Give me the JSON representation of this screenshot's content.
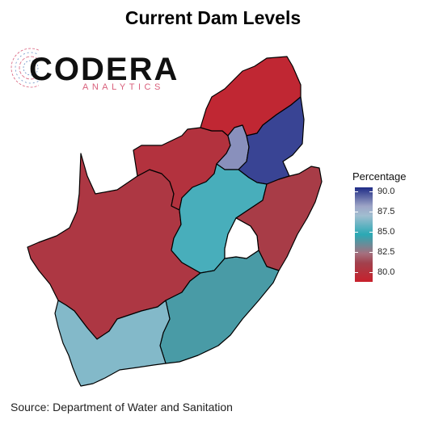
{
  "title": "Current Dam Levels",
  "logo": {
    "name": "CODERA",
    "subtitle": "ANALYTICS"
  },
  "legend": {
    "title": "Percentage",
    "ticks": [
      "90.0",
      "87.5",
      "85.0",
      "82.5",
      "80.0"
    ],
    "colors": {
      "low": "#c8202c",
      "mid": "#2aa9b4",
      "high": "#1e2b86"
    }
  },
  "source": "Source: Department of Water and Sanitation",
  "chart_data": {
    "type": "choropleth",
    "title": "Current Dam Levels",
    "legend_title": "Percentage",
    "scale": {
      "min": 79,
      "max": 91,
      "tick_values": [
        90.0,
        87.5,
        85.0,
        82.5,
        80.0
      ]
    },
    "regions": [
      {
        "id": "limpopo",
        "value": 79.5
      },
      {
        "id": "mpumalanga",
        "value": 90.5
      },
      {
        "id": "gauteng",
        "value": 89.0
      },
      {
        "id": "north-west",
        "value": 80.3
      },
      {
        "id": "free-state",
        "value": 85.6
      },
      {
        "id": "kwazulu-natal",
        "value": 81.0
      },
      {
        "id": "northern-cape",
        "value": 80.7
      },
      {
        "id": "eastern-cape",
        "value": 84.4
      },
      {
        "id": "western-cape",
        "value": 86.8
      }
    ]
  }
}
